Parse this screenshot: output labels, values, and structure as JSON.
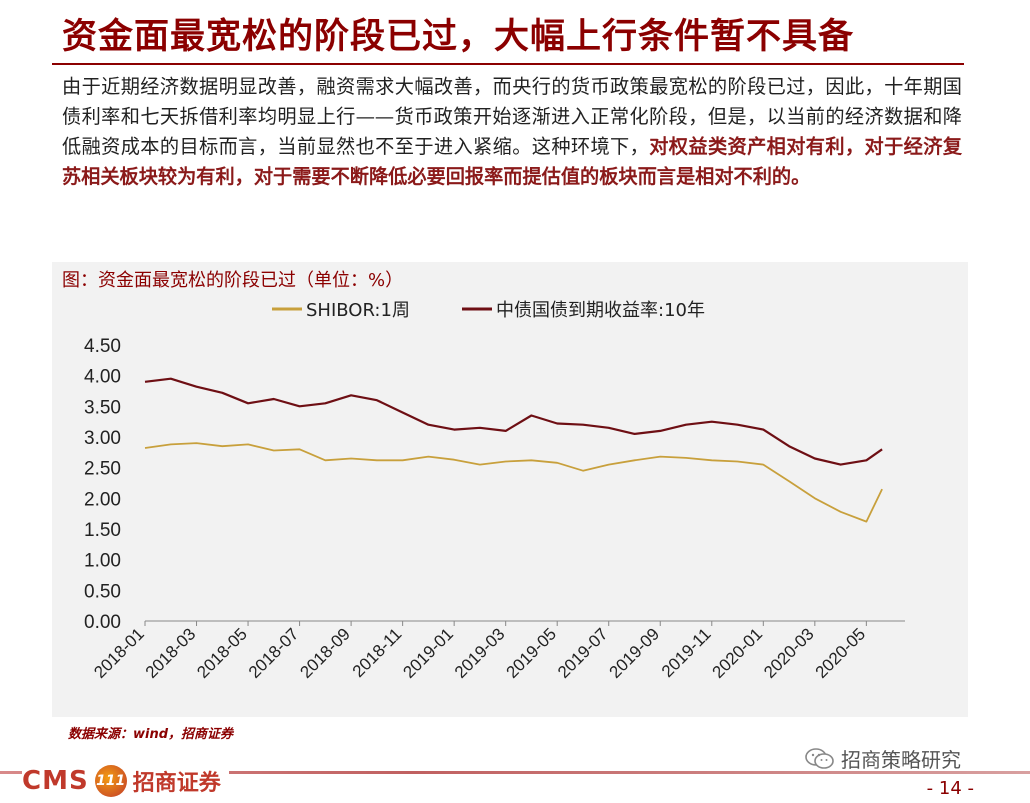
{
  "header": {
    "title": "资金面最宽松的阶段已过，大幅上行条件暂不具备"
  },
  "summary": {
    "normal": "由于近期经济数据明显改善，融资需求大幅改善，而央行的货币政策最宽松的阶段已过，因此，十年期国债利率和七天拆借利率均明显上行——货币政策开始逐渐进入正常化阶段，但是，以当前的经济数据和降低融资成本的目标而言，当前显然也不至于进入紧缩。这种环境下，",
    "highlight": "对权益类资产相对有利，对于经济复苏相关板块较为有利，对于需要不断降低必要回报率而提估值的板块而言是相对不利的。"
  },
  "chart_title": "图：资金面最宽松的阶段已过（单位：%）",
  "source": "数据来源：wind，招商证券",
  "wechat": {
    "label": "招商策略研究",
    "icon": "wechat-icon"
  },
  "footer": {
    "logo_cms": "CMS",
    "logo_mark": "111",
    "logo_name": "招商证券",
    "page": "- 14 -"
  },
  "colors": {
    "accent": "#8b0000",
    "shibor": "#c8a03c",
    "bond": "#6e0f14",
    "background": "#f2f2f2"
  },
  "chart_data": {
    "type": "line",
    "title": "资金面最宽松的阶段已过（单位：%）",
    "ylim": [
      0,
      4.5
    ],
    "yticks": [
      "4.50",
      "4.00",
      "3.50",
      "3.00",
      "2.50",
      "2.00",
      "1.50",
      "1.00",
      "0.50",
      "0.00"
    ],
    "xlim": [
      "2018-01",
      "2020-06"
    ],
    "xticks": [
      "2018-01",
      "2018-03",
      "2018-05",
      "2018-07",
      "2018-09",
      "2018-11",
      "2019-01",
      "2019-03",
      "2019-05",
      "2019-07",
      "2019-09",
      "2019-11",
      "2020-01",
      "2020-03",
      "2020-05"
    ],
    "legend_position": "top",
    "grid": false,
    "x": [
      "2018-01",
      "2018-02",
      "2018-03",
      "2018-04",
      "2018-05",
      "2018-06",
      "2018-07",
      "2018-08",
      "2018-09",
      "2018-10",
      "2018-11",
      "2018-12",
      "2019-01",
      "2019-02",
      "2019-03",
      "2019-04",
      "2019-05",
      "2019-06",
      "2019-07",
      "2019-08",
      "2019-09",
      "2019-10",
      "2019-11",
      "2019-12",
      "2020-01",
      "2020-02",
      "2020-03",
      "2020-04",
      "2020-05",
      "2020-06"
    ],
    "series": [
      {
        "name": "SHIBOR:1周",
        "color": "#c8a03c",
        "values": [
          2.82,
          2.88,
          2.9,
          2.85,
          2.88,
          2.78,
          2.8,
          2.62,
          2.65,
          2.62,
          2.62,
          2.68,
          2.63,
          2.55,
          2.6,
          2.62,
          2.58,
          2.45,
          2.55,
          2.62,
          2.68,
          2.66,
          2.62,
          2.6,
          2.55,
          2.28,
          2.0,
          1.78,
          1.62,
          2.15
        ]
      },
      {
        "name": "中债国债到期收益率:10年",
        "color": "#6e0f14",
        "values": [
          3.9,
          3.95,
          3.82,
          3.72,
          3.55,
          3.62,
          3.5,
          3.55,
          3.68,
          3.6,
          3.4,
          3.2,
          3.12,
          3.15,
          3.1,
          3.35,
          3.22,
          3.2,
          3.15,
          3.05,
          3.1,
          3.2,
          3.25,
          3.2,
          3.12,
          2.85,
          2.65,
          2.55,
          2.62,
          2.8
        ]
      }
    ]
  }
}
